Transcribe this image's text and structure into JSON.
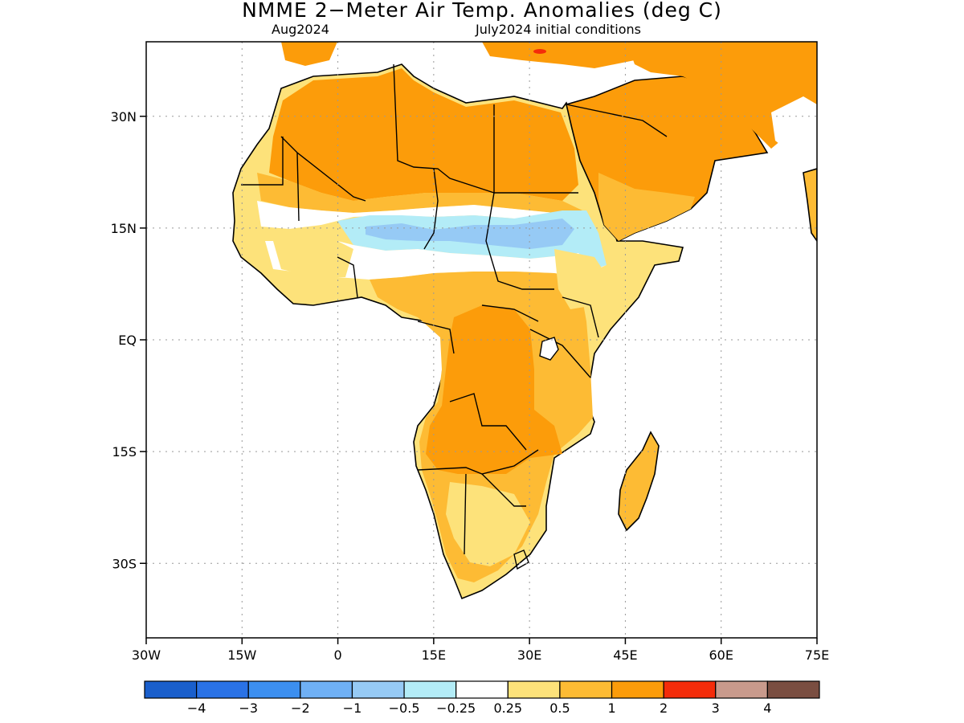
{
  "title": "NMME 2−Meter Air Temp. Anomalies (deg C)",
  "subtitle_left": "Aug2024",
  "subtitle_right": "July2024 initial conditions",
  "map": {
    "lon_range": [
      -30,
      75
    ],
    "lat_range": [
      -40,
      40
    ],
    "lat_ticks": [
      {
        "value": 30,
        "label": "30N"
      },
      {
        "value": 15,
        "label": "15N"
      },
      {
        "value": 0,
        "label": "EQ"
      },
      {
        "value": -15,
        "label": "15S"
      },
      {
        "value": -30,
        "label": "30S"
      }
    ],
    "lon_ticks": [
      {
        "value": -30,
        "label": "30W"
      },
      {
        "value": -15,
        "label": "15W"
      },
      {
        "value": 0,
        "label": "0"
      },
      {
        "value": 15,
        "label": "15E"
      },
      {
        "value": 30,
        "label": "30E"
      },
      {
        "value": 45,
        "label": "45E"
      },
      {
        "value": 60,
        "label": "60E"
      },
      {
        "value": 75,
        "label": "75E"
      }
    ],
    "grid": "dotted"
  },
  "colorbar": {
    "colors": [
      "#1a5fcc",
      "#2a72e6",
      "#3c8ff0",
      "#6fb0f5",
      "#96caf5",
      "#b3ecf7",
      "#ffffff",
      "#fde27a",
      "#fdbb34",
      "#fc9c0a",
      "#f42c0a",
      "#c89a8c",
      "#7a4e41"
    ],
    "labels": [
      "−4",
      "−3",
      "−2",
      "−1",
      "−0.5",
      "−0.25",
      "0.25",
      "0.5",
      "1",
      "2",
      "3",
      "4"
    ]
  }
}
